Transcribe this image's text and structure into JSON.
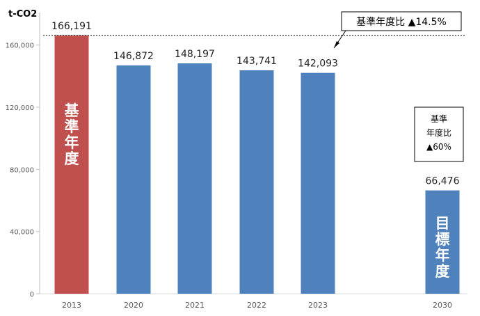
{
  "chart_data": {
    "type": "bar",
    "y_unit": "t-CO2",
    "categories": [
      "2013",
      "2020",
      "2021",
      "2022",
      "2023",
      "2030"
    ],
    "values": [
      166191,
      146872,
      148197,
      143741,
      142093,
      66476
    ],
    "value_labels": [
      "166,191",
      "146,872",
      "148,197",
      "143,741",
      "142,093",
      "66,476"
    ],
    "bar_colors": [
      "#C0504D",
      "#4F81BD",
      "#4F81BD",
      "#4F81BD",
      "#4F81BD",
      "#4F81BD"
    ],
    "bar_inner_labels": [
      {
        "category": "2013",
        "text": "基準年度"
      },
      {
        "category": "2030",
        "text": "目標年度"
      }
    ],
    "ylim": [
      0,
      180000
    ],
    "yticks": [
      0,
      40000,
      80000,
      120000,
      160000
    ],
    "ytick_labels": [
      "0",
      "40,000",
      "80,000",
      "120,000",
      "160,000"
    ],
    "reference_line": {
      "value": 166191,
      "style": "dotted"
    },
    "annotations": [
      {
        "text": "基準年度比 ▲14.5%"
      },
      {
        "lines": [
          "基準",
          "年度比",
          "▲60%"
        ]
      }
    ],
    "grid": false,
    "legend": "none"
  }
}
